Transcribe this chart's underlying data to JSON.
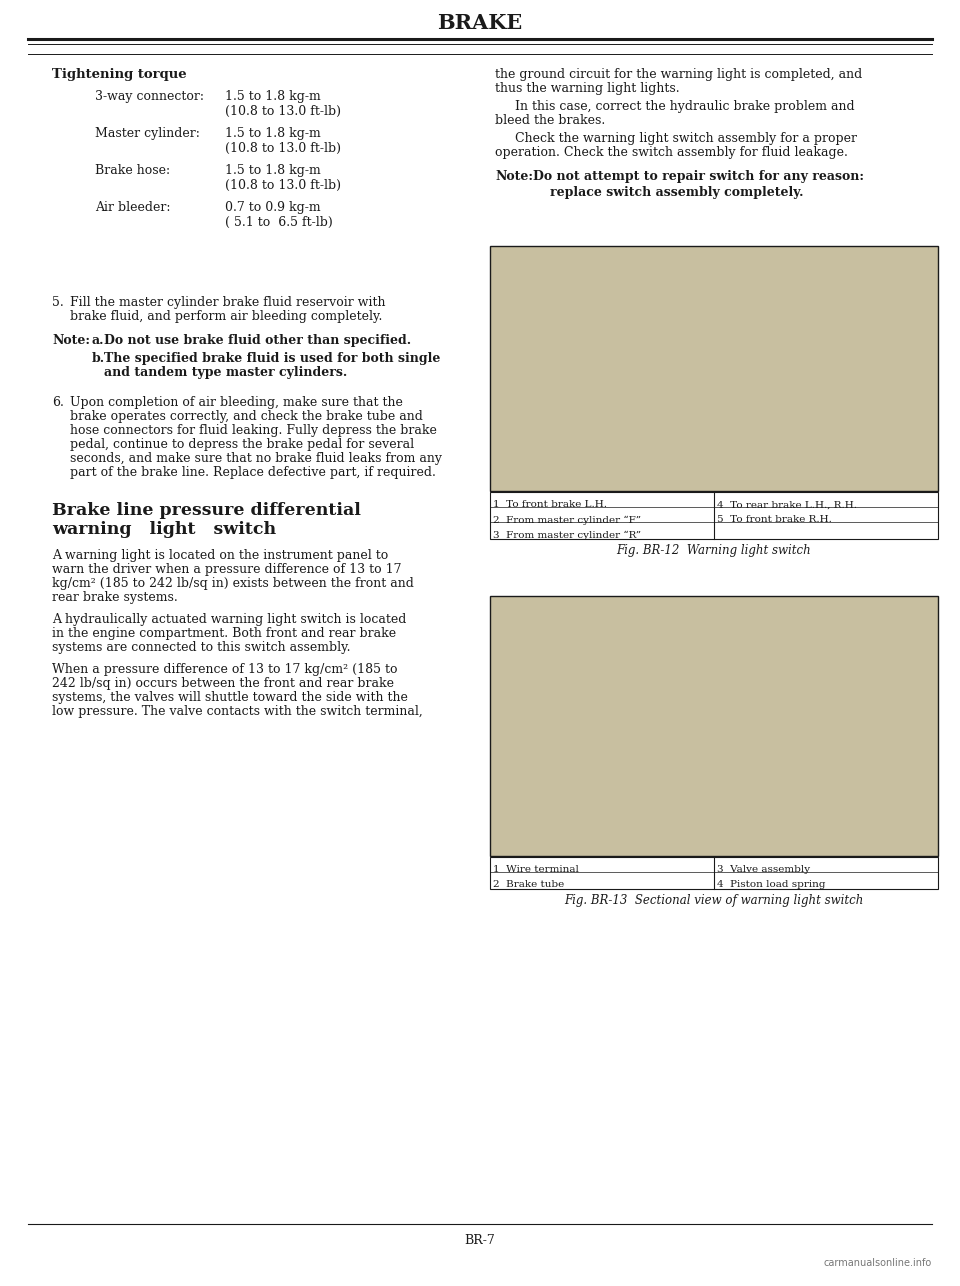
{
  "page_title": "BRAKE",
  "page_number": "BR-7",
  "background_color": "#ffffff",
  "tightening_torque": {
    "heading": "Tightening torque",
    "items": [
      {
        "label": "3-way connector:",
        "v1": "1.5 to 1.8 kg-m",
        "v2": "(10.8 to 13.0 ft-lb)"
      },
      {
        "label": "Master cylinder:",
        "v1": "1.5 to 1.8 kg-m",
        "v2": "(10.8 to 13.0 ft-lb)"
      },
      {
        "label": "Brake hose:",
        "v1": "1.5 to 1.8 kg-m",
        "v2": "(10.8 to 13.0 ft-lb)"
      },
      {
        "label": "Air bleeder:",
        "v1": "0.7 to 0.9 kg-m",
        "v2": "( 5.1 to  6.5 ft-lb)"
      }
    ]
  },
  "fig_br12": {
    "caption": "Fig. BR-12  Warning light switch",
    "table_rows": [
      [
        "1  To front brake L.H.",
        "4  To rear brake L.H., R.H."
      ],
      [
        "2  From master cylinder “F”",
        "5  To front brake R.H."
      ],
      [
        "3  From master cylinder “R”",
        ""
      ]
    ]
  },
  "fig_br13": {
    "caption": "Fig. BR-13  Sectional view of warning light switch",
    "table_rows": [
      [
        "1  Wire terminal",
        "3  Valve assembly"
      ],
      [
        "2  Brake tube",
        "4  Piston load spring"
      ]
    ]
  },
  "watermark": "carmanualsonline.info"
}
